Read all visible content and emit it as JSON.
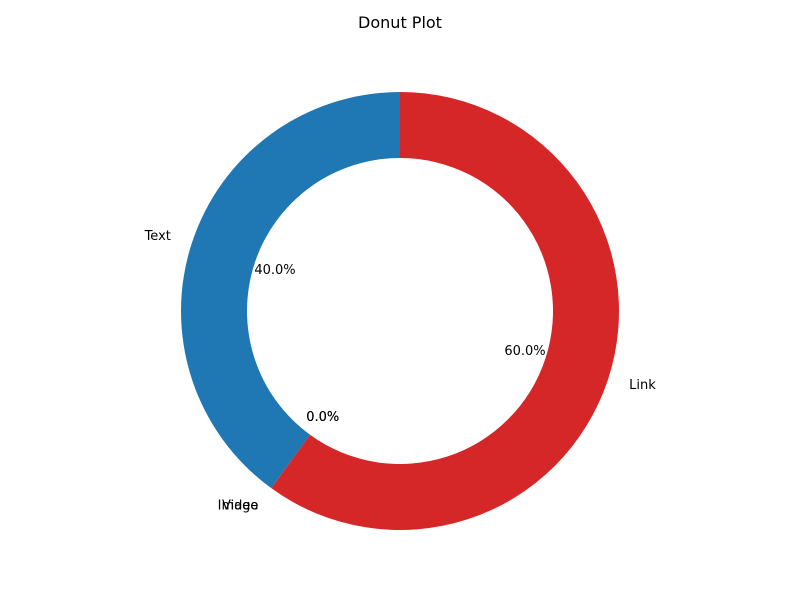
{
  "chart_data": {
    "type": "pie",
    "style": "donut",
    "title": "Donut Plot",
    "start_angle_deg": 90,
    "direction": "counterclockwise",
    "slices": [
      {
        "label": "Text",
        "value": 40,
        "pct_label": "40.0%",
        "color": "#1f77b4"
      },
      {
        "label": "Image",
        "value": 0,
        "pct_label": "0.0%",
        "color": "#ff7f0e"
      },
      {
        "label": "Video",
        "value": 0,
        "pct_label": "0.0%",
        "color": "#2ca02c"
      },
      {
        "label": "Link",
        "value": 60,
        "pct_label": "60.0%",
        "color": "#d62728"
      }
    ]
  }
}
